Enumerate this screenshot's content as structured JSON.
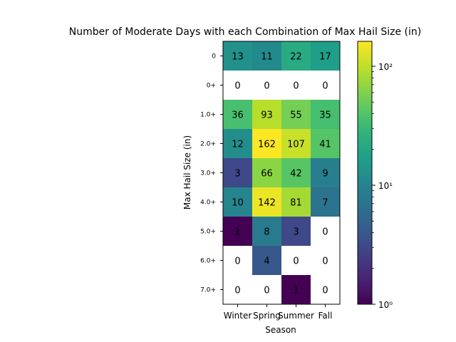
{
  "chart_data": {
    "type": "heatmap",
    "title": "Number of Moderate Days with each Combination of Max Hail Size (in)",
    "xlabel": "Season",
    "ylabel": "Max Hail Size (in)",
    "x_categories": [
      "Winter",
      "Spring",
      "Summer",
      "Fall"
    ],
    "y_categories": [
      "0",
      "0+",
      "1.0+",
      "2.0+",
      "3.0+",
      "4.0+",
      "5.0+",
      "6.0+",
      "7.0+"
    ],
    "values": [
      [
        13,
        11,
        22,
        17
      ],
      [
        0,
        0,
        0,
        0
      ],
      [
        36,
        93,
        55,
        35
      ],
      [
        12,
        162,
        107,
        41
      ],
      [
        3,
        66,
        42,
        9
      ],
      [
        10,
        142,
        81,
        7
      ],
      [
        1,
        8,
        3,
        0
      ],
      [
        0,
        4,
        0,
        0
      ],
      [
        0,
        0,
        1,
        0
      ]
    ],
    "color_scale": {
      "type": "log",
      "colormap": "viridis",
      "vmin": 1,
      "vmax": 162,
      "zero_color": "#ffffff",
      "ticks": [
        {
          "value": 1,
          "label": "10⁰"
        },
        {
          "value": 10,
          "label": "10¹"
        },
        {
          "value": 100,
          "label": "10²"
        }
      ]
    },
    "annotations": "cell values printed at center of each cell"
  }
}
